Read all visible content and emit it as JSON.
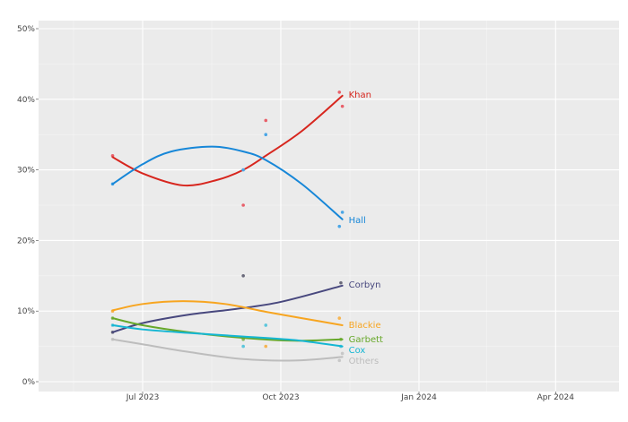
{
  "chart_data": {
    "type": "line",
    "title": "",
    "xlabel": "",
    "ylabel": "",
    "ylim": [
      0,
      50
    ],
    "xlim": [
      "2023-04-10",
      "2024-05-15"
    ],
    "y_ticks": [
      0,
      10,
      20,
      30,
      40,
      50
    ],
    "y_tick_labels": [
      "0%",
      "10%",
      "20%",
      "30%",
      "40%",
      "50%"
    ],
    "x_ticks": [
      "2023-07-01",
      "2023-10-01",
      "2024-01-01",
      "2024-04-01"
    ],
    "x_tick_labels": [
      "Jul 2023",
      "Oct 2023",
      "Jan 2024",
      "Apr 2024"
    ],
    "grid": true,
    "legend": "direct labels at line ends",
    "series": [
      {
        "name": "Khan",
        "color": "#d7261e",
        "point_color": "#e8606a",
        "points": [
          [
            "2023-06-11",
            32
          ],
          [
            "2023-09-06",
            25
          ],
          [
            "2023-09-21",
            37
          ],
          [
            "2023-11-09",
            41
          ],
          [
            "2023-11-11",
            39
          ]
        ],
        "trend": [
          [
            "2023-06-11",
            31.8
          ],
          [
            "2023-07-01",
            29.5
          ],
          [
            "2023-07-28",
            27.8
          ],
          [
            "2023-08-20",
            28.6
          ],
          [
            "2023-09-06",
            30
          ],
          [
            "2023-09-21",
            32
          ],
          [
            "2023-10-15",
            35.5
          ],
          [
            "2023-11-11",
            40.5
          ]
        ]
      },
      {
        "name": "Hall",
        "color": "#1787d8",
        "point_color": "#4aa6e6",
        "points": [
          [
            "2023-06-11",
            28
          ],
          [
            "2023-09-06",
            30
          ],
          [
            "2023-09-21",
            35
          ],
          [
            "2023-11-09",
            22
          ],
          [
            "2023-11-11",
            24
          ]
        ],
        "trend": [
          [
            "2023-06-11",
            28
          ],
          [
            "2023-07-01",
            30.8
          ],
          [
            "2023-07-20",
            32.6
          ],
          [
            "2023-08-16",
            33.3
          ],
          [
            "2023-09-06",
            32.6
          ],
          [
            "2023-09-21",
            31.4
          ],
          [
            "2023-10-15",
            28
          ],
          [
            "2023-11-11",
            23
          ]
        ]
      },
      {
        "name": "Corbyn",
        "color": "#48487e",
        "point_color": "#6a6a7a",
        "points": [
          [
            "2023-06-11",
            7
          ],
          [
            "2023-09-06",
            15
          ],
          [
            "2023-11-10",
            14
          ]
        ],
        "trend": [
          [
            "2023-06-11",
            7
          ],
          [
            "2023-07-01",
            8.3
          ],
          [
            "2023-08-01",
            9.5
          ],
          [
            "2023-09-01",
            10.3
          ],
          [
            "2023-10-01",
            11.3
          ],
          [
            "2023-11-11",
            13.6
          ]
        ]
      },
      {
        "name": "Blackie",
        "color": "#f7a520",
        "point_color": "#f6b552",
        "points": [
          [
            "2023-06-11",
            10
          ],
          [
            "2023-09-21",
            5
          ],
          [
            "2023-11-09",
            9
          ]
        ],
        "trend": [
          [
            "2023-06-11",
            10.1
          ],
          [
            "2023-07-01",
            11
          ],
          [
            "2023-07-28",
            11.4
          ],
          [
            "2023-08-25",
            11
          ],
          [
            "2023-09-21",
            9.9
          ],
          [
            "2023-10-15",
            9
          ],
          [
            "2023-11-11",
            8
          ]
        ]
      },
      {
        "name": "Garbett",
        "color": "#67a82a",
        "point_color": "#86b85a",
        "points": [
          [
            "2023-06-11",
            9
          ],
          [
            "2023-09-06",
            6
          ],
          [
            "2023-11-10",
            6
          ]
        ],
        "trend": [
          [
            "2023-06-11",
            9
          ],
          [
            "2023-07-01",
            8
          ],
          [
            "2023-08-01",
            7
          ],
          [
            "2023-09-06",
            6.2
          ],
          [
            "2023-10-10",
            5.8
          ],
          [
            "2023-11-11",
            6
          ]
        ]
      },
      {
        "name": "Cox",
        "color": "#15b6d3",
        "point_color": "#5cc6dc",
        "points": [
          [
            "2023-06-11",
            8
          ],
          [
            "2023-09-06",
            5
          ],
          [
            "2023-09-21",
            8
          ],
          [
            "2023-11-10",
            5
          ]
        ],
        "trend": [
          [
            "2023-06-11",
            8
          ],
          [
            "2023-07-01",
            7.4
          ],
          [
            "2023-08-01",
            6.9
          ],
          [
            "2023-09-06",
            6.4
          ],
          [
            "2023-10-10",
            5.9
          ],
          [
            "2023-11-11",
            5
          ]
        ]
      },
      {
        "name": "Others",
        "color": "#bdbdbd",
        "point_color": "#c8c8c8",
        "points": [
          [
            "2023-06-11",
            6
          ],
          [
            "2023-11-09",
            3
          ],
          [
            "2023-11-11",
            4
          ]
        ],
        "trend": [
          [
            "2023-06-11",
            6
          ],
          [
            "2023-07-01",
            5.3
          ],
          [
            "2023-08-01",
            4.2
          ],
          [
            "2023-09-06",
            3.2
          ],
          [
            "2023-10-10",
            3
          ],
          [
            "2023-11-11",
            3.5
          ]
        ]
      }
    ]
  }
}
